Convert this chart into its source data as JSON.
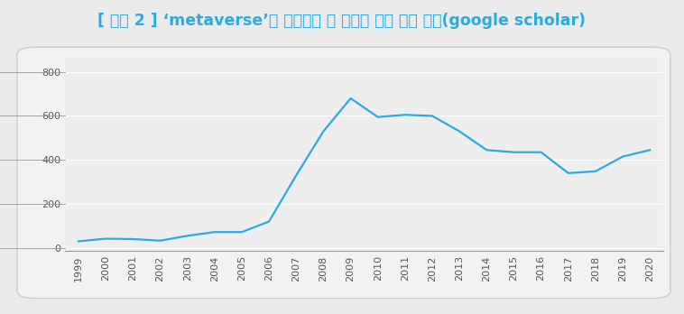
{
  "title": "[ 그림 2 ] ‘metaverse’를 키워드로 한 연도별 논문 추이 분석(google scholar)",
  "years": [
    1999,
    2000,
    2001,
    2002,
    2003,
    2004,
    2005,
    2006,
    2007,
    2008,
    2009,
    2010,
    2011,
    2012,
    2013,
    2014,
    2015,
    2016,
    2017,
    2018,
    2019,
    2020
  ],
  "values": [
    30,
    42,
    40,
    33,
    55,
    72,
    72,
    120,
    330,
    530,
    680,
    595,
    605,
    600,
    530,
    445,
    435,
    435,
    340,
    348,
    415,
    445
  ],
  "line_color": "#29abe2",
  "background_color": "#ebebeb",
  "box_color": "#f2f2f2",
  "box_edge_color": "#cccccc",
  "title_color": "#29abe2",
  "axis_bg_color": "#eeeeee",
  "grid_color": "#ffffff",
  "tick_color": "#555555",
  "yticks": [
    0,
    200,
    400,
    600,
    800
  ],
  "ylim": [
    -15,
    870
  ],
  "title_fontsize": 12.5,
  "tick_fontsize": 8.0
}
